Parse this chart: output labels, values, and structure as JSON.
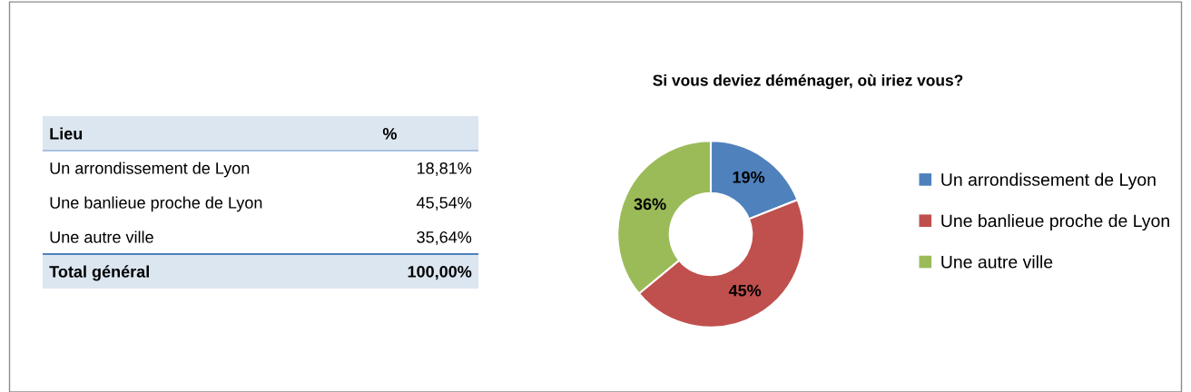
{
  "chart_data": [
    {
      "type": "other",
      "annotations": [
        "Lieu",
        "%",
        "Un arrondissement de Lyon",
        "18,81%",
        "Une banlieue proche de Lyon",
        "45,54%",
        "Une autre ville",
        "35,64%",
        "Total général",
        "100,00%"
      ]
    },
    {
      "type": "donut",
      "title": "Si vous deviez déménager, où iriez vous?",
      "categories": [
        "Un arrondissement de Lyon",
        "Une banlieue proche de Lyon",
        "Une autre ville"
      ],
      "values": [
        19,
        45,
        36
      ],
      "value_labels": [
        "19%",
        "45%",
        "36%"
      ],
      "colors": [
        "#4f81bd",
        "#c0504d",
        "#9bbb59"
      ],
      "legend": "right"
    }
  ]
}
